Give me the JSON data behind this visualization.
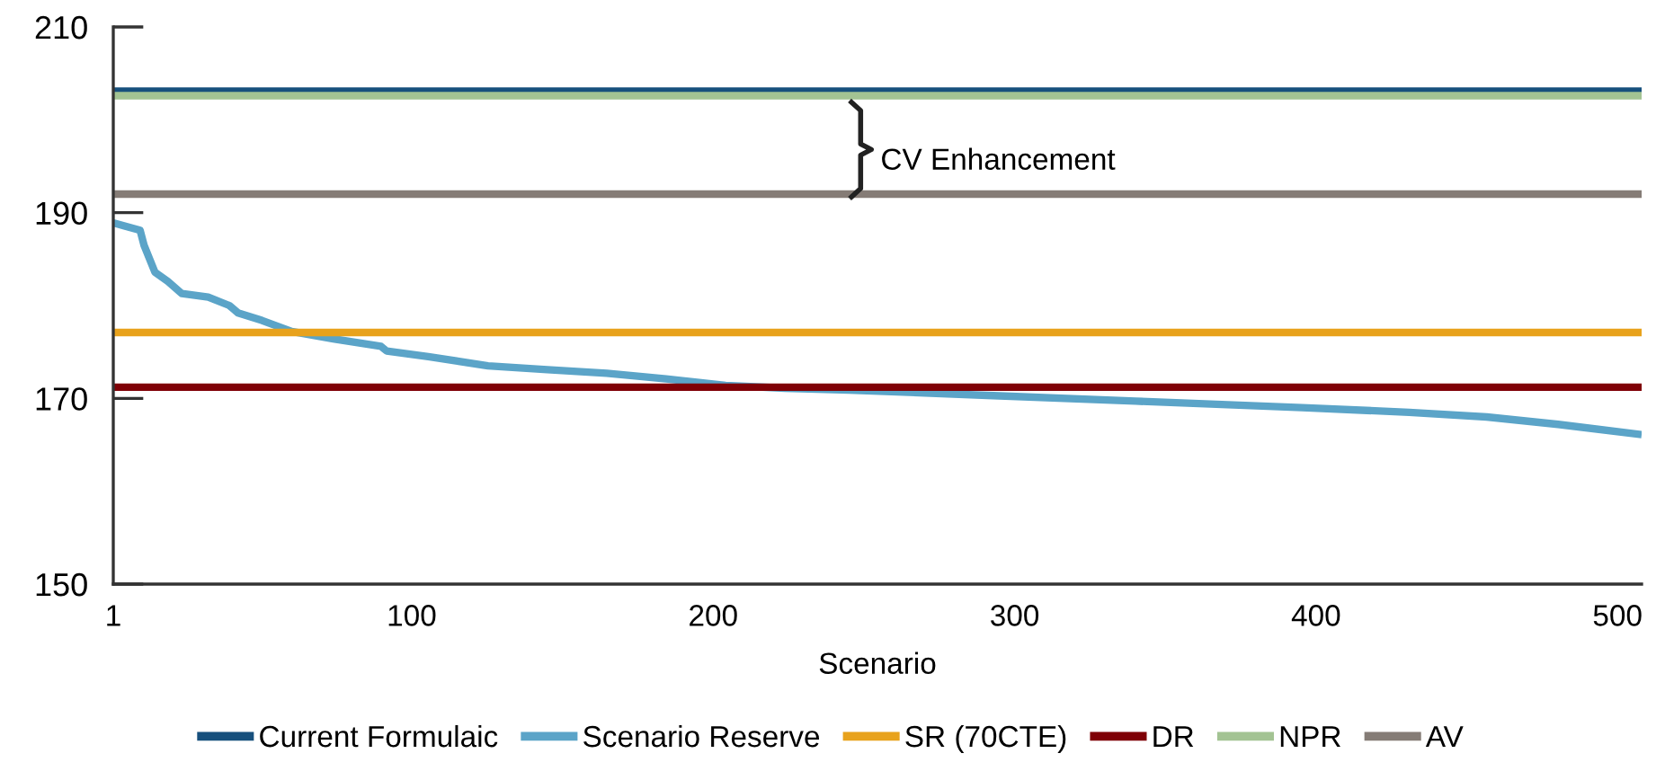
{
  "chart_data": {
    "type": "line",
    "xlabel": "Scenario",
    "xlim": [
      1,
      508
    ],
    "xticks": [
      1,
      100,
      200,
      300,
      400,
      500
    ],
    "ylim": [
      150,
      210
    ],
    "yticks": [
      150,
      170,
      190,
      210
    ],
    "grid": false,
    "legend": "bottom",
    "marker": "none",
    "line_style": "solid",
    "series": [
      {
        "name": "Current Formulaic",
        "color": "#17507d",
        "x": [
          1,
          508
        ],
        "values": [
          203.1,
          203.1
        ]
      },
      {
        "name": "Scenario Reserve",
        "color": "#5ba4c8",
        "x": [
          1,
          9.9,
          11.2,
          14.8,
          19.1,
          23.7,
          32.5,
          39.5,
          42.4,
          50.3,
          60.2,
          74,
          89.8,
          91.7,
          105.5,
          125.3,
          145,
          164.7,
          184.4,
          204.1,
          223.8,
          245,
          292.9,
          340.2,
          395.4,
          430.9,
          456.6,
          480.3,
          508
        ],
        "values": [
          188.9,
          188.1,
          186.5,
          183.6,
          182.6,
          181.3,
          180.9,
          180.0,
          179.2,
          178.4,
          177.2,
          176.4,
          175.6,
          175.1,
          174.5,
          173.5,
          173.1,
          172.7,
          172.1,
          171.4,
          171.1,
          170.9,
          170.3,
          169.7,
          169.0,
          168.5,
          168.0,
          167.2,
          166.1
        ]
      },
      {
        "name": "SR (70CTE)",
        "color": "#e8a21c",
        "x": [
          1,
          508
        ],
        "values": [
          177.1,
          177.1
        ]
      },
      {
        "name": "DR",
        "color": "#7f0006",
        "x": [
          1,
          508
        ],
        "values": [
          171.2,
          171.2
        ]
      },
      {
        "name": "NPR",
        "color": "#a3c393",
        "x": [
          1,
          508
        ],
        "values": [
          202.6,
          202.6
        ]
      },
      {
        "name": "AV",
        "color": "#857c76",
        "x": [
          1,
          508
        ],
        "values": [
          192.0,
          192.0
        ]
      }
    ],
    "annotations": [
      "CV Enhancement"
    ]
  }
}
